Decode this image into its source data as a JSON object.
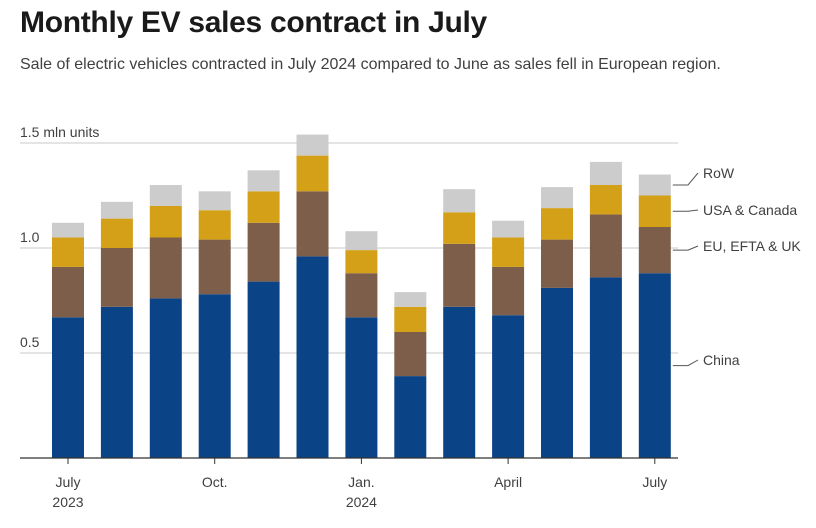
{
  "title": "Monthly EV sales contract in July",
  "subtitle": "Sale of electric vehicles contracted in July 2024 compared to June as sales fell in European region.",
  "chart_data": {
    "type": "bar",
    "stacked": true,
    "ylabel": "1.5 mln units",
    "ylim": [
      0,
      1.5
    ],
    "yticks": [
      {
        "value": 0.5,
        "label": "0.5"
      },
      {
        "value": 1.0,
        "label": "1.0"
      },
      {
        "value": 1.5,
        "label": "1.5 mln units"
      }
    ],
    "x_tick_labels": [
      {
        "index": 0,
        "lines": [
          "July",
          "2023"
        ]
      },
      {
        "index": 3,
        "lines": [
          "Oct."
        ]
      },
      {
        "index": 6,
        "lines": [
          "Jan.",
          "2024"
        ]
      },
      {
        "index": 9,
        "lines": [
          "April"
        ]
      },
      {
        "index": 12,
        "lines": [
          "July"
        ]
      }
    ],
    "categories": [
      "2023-07",
      "2023-08",
      "2023-09",
      "2023-10",
      "2023-11",
      "2023-12",
      "2024-01",
      "2024-02",
      "2024-03",
      "2024-04",
      "2024-05",
      "2024-06",
      "2024-07"
    ],
    "series": [
      {
        "name": "China",
        "color": "#0b4387",
        "values": [
          0.67,
          0.72,
          0.76,
          0.78,
          0.84,
          0.96,
          0.67,
          0.39,
          0.72,
          0.68,
          0.81,
          0.86,
          0.88
        ]
      },
      {
        "name": "EU, EFTA & UK",
        "color": "#7c5e4a",
        "values": [
          0.24,
          0.28,
          0.29,
          0.26,
          0.28,
          0.31,
          0.21,
          0.21,
          0.3,
          0.23,
          0.23,
          0.3,
          0.22
        ]
      },
      {
        "name": "USA & Canada",
        "color": "#d4a017",
        "values": [
          0.14,
          0.14,
          0.15,
          0.14,
          0.15,
          0.17,
          0.11,
          0.12,
          0.15,
          0.14,
          0.15,
          0.14,
          0.15
        ]
      },
      {
        "name": "RoW",
        "color": "#cccccc",
        "values": [
          0.07,
          0.08,
          0.1,
          0.09,
          0.1,
          0.1,
          0.09,
          0.07,
          0.11,
          0.08,
          0.1,
          0.11,
          0.1
        ]
      }
    ],
    "legend": [
      "RoW",
      "USA & Canada",
      "EU, EFTA & UK",
      "China"
    ],
    "legend_placement": "right",
    "grid": true
  }
}
